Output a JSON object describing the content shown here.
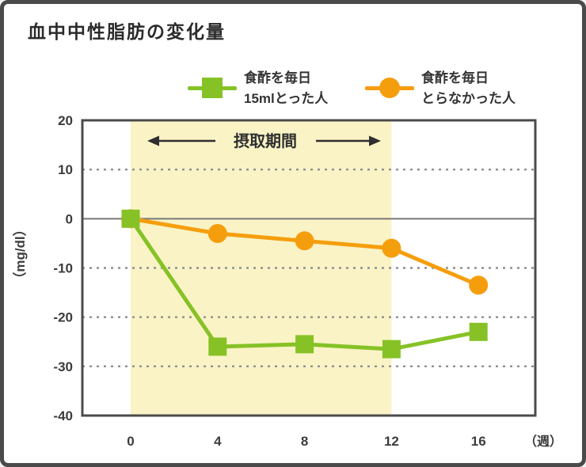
{
  "title": "血中中性脂肪の変化量",
  "legend": {
    "items": [
      {
        "line1": "食酢を毎日",
        "line2": "15mlとった人",
        "marker": "square",
        "color": "#86c226"
      },
      {
        "line1": "食酢を毎日",
        "line2": "とらなかった人",
        "marker": "circle",
        "color": "#f59e0d"
      }
    ]
  },
  "chart_data": {
    "type": "line",
    "title": "血中中性脂肪の変化量",
    "xlabel_unit": "（週）",
    "ylabel": "（mg/dl）",
    "x": [
      0,
      4,
      8,
      12,
      16
    ],
    "xticks": [
      "0",
      "4",
      "8",
      "12",
      "16"
    ],
    "yticks": [
      20,
      10,
      0,
      -10,
      -20,
      -30,
      -40
    ],
    "grid_yticks": [
      10,
      -10,
      -20,
      -30
    ],
    "ylim": [
      -40,
      20
    ],
    "series": [
      {
        "name": "食酢を毎日15mlとった人",
        "marker": "square",
        "color": "#86c226",
        "values": [
          0,
          -26,
          -25.5,
          -26.5,
          -23
        ]
      },
      {
        "name": "食酢を毎日とらなかった人",
        "marker": "circle",
        "color": "#f59e0d",
        "values": [
          0,
          -3,
          -4.5,
          -6,
          -13.5
        ]
      }
    ],
    "band": {
      "x_start": 0,
      "x_end": 12,
      "label": "摂取期間",
      "color": "#faf3c6"
    },
    "colors": {
      "grid": "#8f8f8f",
      "zero_line": "#787878",
      "plot_border": "#4b4b4b",
      "tick_text": "#3c3c3c",
      "annotation": "#2f2f2f"
    },
    "legend_position": "top",
    "grid": "horizontal dashed"
  }
}
